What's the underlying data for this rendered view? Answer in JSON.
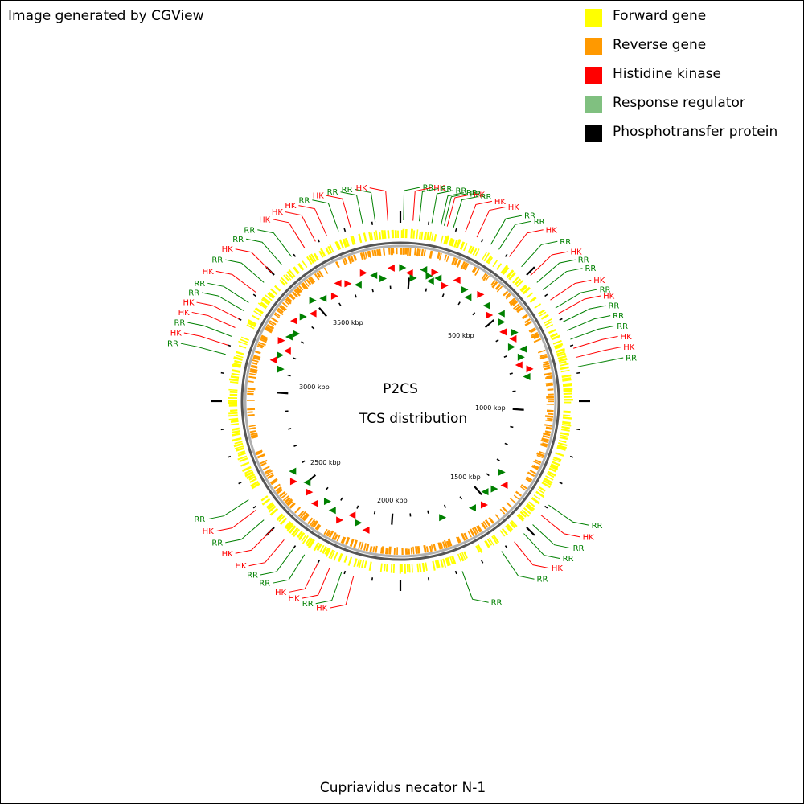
{
  "credit": "Image generated by CGView",
  "center": {
    "line1": "P2CS",
    "line2": "TCS distribution"
  },
  "organism": "Cupriavidus necator N-1",
  "colors": {
    "forward": "#ffff00",
    "reverse": "#ff9900",
    "hk": "#ff0000",
    "rr": "#008000",
    "backbone": "#808080"
  },
  "legend": [
    {
      "label": "Forward gene",
      "color": "#ffff00"
    },
    {
      "label": "Reverse gene",
      "color": "#ff9900"
    },
    {
      "label": "Histidine kinase",
      "color": "#ff0000"
    },
    {
      "label": "Response regulator",
      "color": "#80c080"
    },
    {
      "label": "Phosphotransfer protein",
      "color": "#000000"
    }
  ],
  "kbp_labels": [
    "500 kbp",
    "1000 kbp",
    "1500 kbp",
    "2000 kbp",
    "2500 kbp",
    "3000 kbp",
    "3500 kbp"
  ],
  "callouts": [
    {
      "deg": 1,
      "label": "RR",
      "type": "rr"
    },
    {
      "deg": 4,
      "label": "HK",
      "type": "hk"
    },
    {
      "deg": 6,
      "label": "RR",
      "type": "rr"
    },
    {
      "deg": 10,
      "label": "RR",
      "type": "rr"
    },
    {
      "deg": 13,
      "label": "RR",
      "type": "rr"
    },
    {
      "deg": 14,
      "label": "RR",
      "type": "rr"
    },
    {
      "deg": 15,
      "label": "HK",
      "type": "hk"
    },
    {
      "deg": 17,
      "label": "RR",
      "type": "rr"
    },
    {
      "deg": 21,
      "label": "HK",
      "type": "hk"
    },
    {
      "deg": 25,
      "label": "HK",
      "type": "hk"
    },
    {
      "deg": 30,
      "label": "RR",
      "type": "rr"
    },
    {
      "deg": 33,
      "label": "RR",
      "type": "rr"
    },
    {
      "deg": 37,
      "label": "HK",
      "type": "hk"
    },
    {
      "deg": 42,
      "label": "RR",
      "type": "rr"
    },
    {
      "deg": 46,
      "label": "HK",
      "type": "hk"
    },
    {
      "deg": 49,
      "label": "RR",
      "type": "rr"
    },
    {
      "deg": 52,
      "label": "RR",
      "type": "rr"
    },
    {
      "deg": 56,
      "label": "HK",
      "type": "hk"
    },
    {
      "deg": 59,
      "label": "RR",
      "type": "rr"
    },
    {
      "deg": 61,
      "label": "HK",
      "type": "hk"
    },
    {
      "deg": 64,
      "label": "RR",
      "type": "rr"
    },
    {
      "deg": 67,
      "label": "RR",
      "type": "rr"
    },
    {
      "deg": 70,
      "label": "RR",
      "type": "rr"
    },
    {
      "deg": 73,
      "label": "HK",
      "type": "hk"
    },
    {
      "deg": 76,
      "label": "HK",
      "type": "hk"
    },
    {
      "deg": 79,
      "label": "RR",
      "type": "rr"
    },
    {
      "deg": 125,
      "label": "RR",
      "type": "rr"
    },
    {
      "deg": 129,
      "label": "HK",
      "type": "hk"
    },
    {
      "deg": 133,
      "label": "RR",
      "type": "rr"
    },
    {
      "deg": 137,
      "label": "RR",
      "type": "rr"
    },
    {
      "deg": 141,
      "label": "HK",
      "type": "hk"
    },
    {
      "deg": 146,
      "label": "RR",
      "type": "rr"
    },
    {
      "deg": 160,
      "label": "RR",
      "type": "rr"
    },
    {
      "deg": 195,
      "label": "HK",
      "type": "hk"
    },
    {
      "deg": 199,
      "label": "RR",
      "type": "rr"
    },
    {
      "deg": 203,
      "label": "HK",
      "type": "hk"
    },
    {
      "deg": 207,
      "label": "HK",
      "type": "hk"
    },
    {
      "deg": 212,
      "label": "RR",
      "type": "rr"
    },
    {
      "deg": 216,
      "label": "RR",
      "type": "rr"
    },
    {
      "deg": 220,
      "label": "HK",
      "type": "hk"
    },
    {
      "deg": 225,
      "label": "HK",
      "type": "hk"
    },
    {
      "deg": 229,
      "label": "RR",
      "type": "rr"
    },
    {
      "deg": 233,
      "label": "HK",
      "type": "hk"
    },
    {
      "deg": 237,
      "label": "RR",
      "type": "rr"
    },
    {
      "deg": 285,
      "label": "RR",
      "type": "rr"
    },
    {
      "deg": 288,
      "label": "HK",
      "type": "hk"
    },
    {
      "deg": 291,
      "label": "RR",
      "type": "rr"
    },
    {
      "deg": 294,
      "label": "HK",
      "type": "hk"
    },
    {
      "deg": 297,
      "label": "HK",
      "type": "hk"
    },
    {
      "deg": 300,
      "label": "RR",
      "type": "rr"
    },
    {
      "deg": 303,
      "label": "RR",
      "type": "rr"
    },
    {
      "deg": 307,
      "label": "HK",
      "type": "hk"
    },
    {
      "deg": 311,
      "label": "RR",
      "type": "rr"
    },
    {
      "deg": 315,
      "label": "HK",
      "type": "hk"
    },
    {
      "deg": 319,
      "label": "RR",
      "type": "rr"
    },
    {
      "deg": 323,
      "label": "RR",
      "type": "rr"
    },
    {
      "deg": 328,
      "label": "HK",
      "type": "hk"
    },
    {
      "deg": 332,
      "label": "HK",
      "type": "hk"
    },
    {
      "deg": 336,
      "label": "HK",
      "type": "hk"
    },
    {
      "deg": 340,
      "label": "RR",
      "type": "rr"
    },
    {
      "deg": 344,
      "label": "HK",
      "type": "hk"
    },
    {
      "deg": 348,
      "label": "RR",
      "type": "rr"
    },
    {
      "deg": 352,
      "label": "RR",
      "type": "rr"
    },
    {
      "deg": 356,
      "label": "HK",
      "type": "hk"
    }
  ]
}
